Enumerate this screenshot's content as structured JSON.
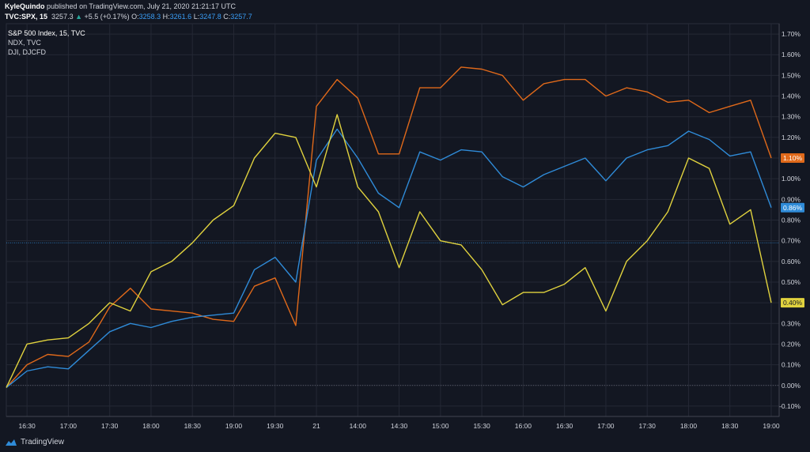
{
  "header": {
    "publisher": "KyleQuindo",
    "published_text": "published on TradingView.com, July 21, 2020 21:21:17 UTC",
    "symbol": "TVC:SPX, 15",
    "last": "3257.3",
    "change": "+5.5 (+0.17%)",
    "o_label": "O:",
    "o_val": "3258.3",
    "h_label": "H:",
    "h_val": "3261.6",
    "l_label": "L:",
    "l_val": "3247.8",
    "c_label": "C:",
    "c_val": "3257.7"
  },
  "legend": [
    "S&P 500 Index, 15, TVC",
    "NDX, TVC",
    "DJI, DJCFD"
  ],
  "footer": {
    "brand": "TradingView"
  },
  "chart_data": {
    "type": "line",
    "grid": true,
    "x_ticks": [
      "16:30",
      "17:00",
      "17:30",
      "18:00",
      "18:30",
      "19:00",
      "19:30",
      "21",
      "14:00",
      "14:30",
      "15:00",
      "15:30",
      "16:00",
      "16:30",
      "17:00",
      "17:30",
      "18:00",
      "18:30",
      "19:00"
    ],
    "y_ticks": [
      "1.70%",
      "1.60%",
      "1.50%",
      "1.40%",
      "1.30%",
      "1.20%",
      "1.10%",
      "1.00%",
      "0.90%",
      "0.80%",
      "0.70%",
      "0.60%",
      "0.50%",
      "0.40%",
      "0.30%",
      "0.20%",
      "0.10%",
      "0.00%",
      "-0.10%"
    ],
    "ylim": [
      -0.15,
      1.75
    ],
    "reference_line": 0.69,
    "series": [
      {
        "color": "#e0691a",
        "last_label": "1.10%",
        "values": [
          -0.01,
          0.1,
          0.15,
          0.14,
          0.21,
          0.38,
          0.47,
          0.37,
          0.36,
          0.35,
          0.32,
          0.31,
          0.48,
          0.52,
          0.29,
          1.35,
          1.48,
          1.39,
          1.12,
          1.12,
          1.44,
          1.44,
          1.54,
          1.53,
          1.5,
          1.38,
          1.46,
          1.48,
          1.48,
          1.4,
          1.44,
          1.42,
          1.37,
          1.38,
          1.32,
          1.35,
          1.38,
          1.1
        ]
      },
      {
        "color": "#2f8bd8",
        "last_label": "0.86%",
        "values": [
          -0.01,
          0.07,
          0.09,
          0.08,
          0.17,
          0.26,
          0.3,
          0.28,
          0.31,
          0.33,
          0.34,
          0.35,
          0.56,
          0.62,
          0.5,
          1.09,
          1.24,
          1.1,
          0.93,
          0.86,
          1.13,
          1.09,
          1.14,
          1.13,
          1.01,
          0.96,
          1.02,
          1.06,
          1.1,
          0.99,
          1.1,
          1.14,
          1.16,
          1.23,
          1.19,
          1.11,
          1.13,
          0.86
        ]
      },
      {
        "color": "#e0d23e",
        "last_label": "0.40%",
        "values": [
          -0.01,
          0.2,
          0.22,
          0.23,
          0.3,
          0.4,
          0.36,
          0.55,
          0.6,
          0.69,
          0.8,
          0.87,
          1.1,
          1.22,
          1.2,
          0.96,
          1.31,
          0.96,
          0.84,
          0.57,
          0.84,
          0.7,
          0.68,
          0.56,
          0.39,
          0.45,
          0.45,
          0.49,
          0.57,
          0.36,
          0.6,
          0.7,
          0.84,
          1.1,
          1.05,
          0.78,
          0.85,
          0.4
        ]
      }
    ]
  }
}
